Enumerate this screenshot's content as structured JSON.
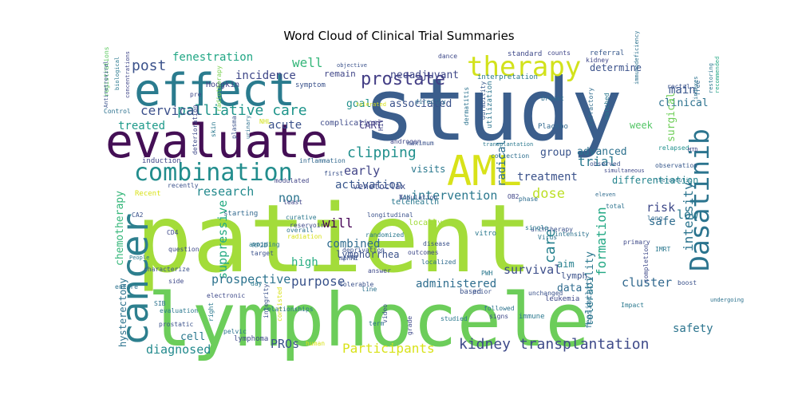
{
  "figure": {
    "title": "Word Cloud of Clinical Trial Summaries"
  },
  "cloud": {
    "background": "#ffffff",
    "colormap": "viridis",
    "words": [
      {
        "text": "study",
        "color": "#3b5e8c"
      },
      {
        "text": "patient",
        "color": "#a3dc3a"
      },
      {
        "text": "lymphocele",
        "color": "#6ccd5a"
      },
      {
        "text": "evaluate",
        "color": "#440f55"
      },
      {
        "text": "effect",
        "color": "#2a7b8e"
      },
      {
        "text": "cancer",
        "color": "#2d7f8e"
      },
      {
        "text": "AML",
        "color": "#d8e219"
      },
      {
        "text": "therapy",
        "color": "#d2e21b"
      },
      {
        "text": "combination",
        "color": "#228d8d"
      },
      {
        "text": "Dasatinib",
        "color": "#2b748e"
      },
      {
        "text": "kidney transplantation",
        "color": "#3e4a89"
      },
      {
        "text": "prostate",
        "color": "#433e85"
      },
      {
        "text": "post",
        "color": "#3b528b"
      },
      {
        "text": "fenestration",
        "color": "#22a785"
      },
      {
        "text": "well",
        "color": "#34b679"
      },
      {
        "text": "incidence",
        "color": "#3f4788"
      },
      {
        "text": "palliative care",
        "color": "#1f958b"
      },
      {
        "text": "cervical",
        "color": "#3c508b"
      },
      {
        "text": "treated",
        "color": "#1e9a8a"
      },
      {
        "text": "main",
        "color": "#39568c"
      },
      {
        "text": "clinical",
        "color": "#2c718e"
      },
      {
        "text": "clipping",
        "color": "#21908d"
      },
      {
        "text": "research",
        "color": "#238a8d"
      },
      {
        "text": "early",
        "color": "#414487"
      },
      {
        "text": "activation",
        "color": "#39568c"
      },
      {
        "text": "intervention",
        "color": "#2a788e"
      },
      {
        "text": "treatment",
        "color": "#3b528b"
      },
      {
        "text": "dose",
        "color": "#bddf26"
      },
      {
        "text": "trial",
        "color": "#2a788e"
      },
      {
        "text": "group",
        "color": "#3a548c"
      },
      {
        "text": "advanced",
        "color": "#2d718e"
      },
      {
        "text": "differentiation",
        "color": "#25858e"
      },
      {
        "text": "risk",
        "color": "#3e4989"
      },
      {
        "text": "safe",
        "color": "#2f6c8e"
      },
      {
        "text": "low",
        "color": "#2a788e"
      },
      {
        "text": "intensity",
        "color": "#2b748e"
      },
      {
        "text": "formation",
        "color": "#22a884"
      },
      {
        "text": "radical",
        "color": "#2e6e8e"
      },
      {
        "text": "surgical",
        "color": "#6ece58"
      },
      {
        "text": "week",
        "color": "#55c667"
      },
      {
        "text": "goal",
        "color": "#21918c"
      },
      {
        "text": "associated",
        "color": "#3b528b"
      },
      {
        "text": "neoadjuvant",
        "color": "#3f4788"
      },
      {
        "text": "remain",
        "color": "#404688"
      },
      {
        "text": "acute",
        "color": "#3b528b"
      },
      {
        "text": "complication",
        "color": "#3e4a89"
      },
      {
        "text": "CART",
        "color": "#433d84"
      },
      {
        "text": "visits",
        "color": "#2a788e"
      },
      {
        "text": "will",
        "color": "#440154"
      },
      {
        "text": "combined",
        "color": "#2f6b8e"
      },
      {
        "text": "lymphorrhea",
        "color": "#3b528b"
      },
      {
        "text": "non",
        "color": "#2b748e"
      },
      {
        "text": "venetoclax",
        "color": "#3e4c8a"
      },
      {
        "text": "suppressive",
        "color": "#25ab82"
      },
      {
        "text": "high",
        "color": "#27ad81"
      },
      {
        "text": "purpose",
        "color": "#3a538b"
      },
      {
        "text": "prospective",
        "color": "#2c738e"
      },
      {
        "text": "administered",
        "color": "#2e6d8e"
      },
      {
        "text": "survival",
        "color": "#3d4e8a"
      },
      {
        "text": "care",
        "color": "#26818e"
      },
      {
        "text": "lymph",
        "color": "#3b528b"
      },
      {
        "text": "aim",
        "color": "#27808e"
      },
      {
        "text": "data",
        "color": "#2f6b8e"
      },
      {
        "text": "cluster",
        "color": "#31688e"
      },
      {
        "text": "tolerability",
        "color": "#2a788e"
      },
      {
        "text": "feasibility",
        "color": "#2d708e"
      },
      {
        "text": "safety",
        "color": "#2b748e"
      },
      {
        "text": "PROs",
        "color": "#3b528b"
      },
      {
        "text": "Participants",
        "color": "#d8e219"
      },
      {
        "text": "diagnosed",
        "color": "#238a8d"
      },
      {
        "text": "cell",
        "color": "#2a788e"
      },
      {
        "text": "chemotherapy",
        "color": "#34b679"
      },
      {
        "text": "hysterectomy",
        "color": "#2c738e"
      },
      {
        "text": "Hodgkin",
        "color": "#414487"
      },
      {
        "text": "symptom",
        "color": "#3b528b"
      },
      {
        "text": "standard",
        "color": "#3e4989"
      },
      {
        "text": "counts",
        "color": "#404688"
      },
      {
        "text": "referral",
        "color": "#38598c"
      },
      {
        "text": "determine",
        "color": "#3b528b"
      },
      {
        "text": "kidney",
        "color": "#3f4788"
      },
      {
        "text": "Placebo",
        "color": "#31688e"
      },
      {
        "text": "breast",
        "color": "#2e6d8e"
      },
      {
        "text": "rectal",
        "color": "#3b528b"
      },
      {
        "text": "interpretation",
        "color": "#2a788e"
      },
      {
        "text": "dance",
        "color": "#3e4989"
      },
      {
        "text": "utilization",
        "color": "#2b748e"
      },
      {
        "text": "durability",
        "color": "#38598c"
      },
      {
        "text": "dermatitis",
        "color": "#2c728e"
      },
      {
        "text": "refractory",
        "color": "#2f6c8e"
      },
      {
        "text": "matched",
        "color": "#2a788e"
      },
      {
        "text": "recommended",
        "color": "#22a884"
      },
      {
        "text": "immunodeficiency",
        "color": "#2c728e"
      },
      {
        "text": "relapsed",
        "color": "#21908d"
      },
      {
        "text": "registrations",
        "color": "#5ec962"
      },
      {
        "text": "Antiretroviral",
        "color": "#3b528b"
      },
      {
        "text": "biological",
        "color": "#2a788e"
      },
      {
        "text": "concentrations",
        "color": "#404688"
      },
      {
        "text": "Control",
        "color": "#2c718e"
      },
      {
        "text": "pre",
        "color": "#3e4989"
      },
      {
        "text": "skin",
        "color": "#2a788e"
      },
      {
        "text": "plasma",
        "color": "#3b528b"
      },
      {
        "text": "radiotherapy",
        "color": "#7ad151"
      },
      {
        "text": "NHL",
        "color": "#d2e21b"
      },
      {
        "text": "urinary",
        "color": "#2d708e"
      },
      {
        "text": "androgen",
        "color": "#404688"
      },
      {
        "text": "maximum",
        "color": "#3b528b"
      },
      {
        "text": "directly",
        "color": "#2e6d8e"
      },
      {
        "text": "HIV",
        "color": "#414487"
      },
      {
        "text": "tolerated",
        "color": "#d8e219"
      },
      {
        "text": "objective",
        "color": "#3b528b"
      },
      {
        "text": "transplantation",
        "color": "#2a788e"
      },
      {
        "text": "collection",
        "color": "#2e6e8e"
      },
      {
        "text": "simultaneous",
        "color": "#3e4989"
      },
      {
        "text": "eleven",
        "color": "#2f6b8e"
      },
      {
        "text": "observed",
        "color": "#3b528b"
      },
      {
        "text": "observation",
        "color": "#38598c"
      },
      {
        "text": "therapeutic",
        "color": "#2a788e"
      },
      {
        "text": "MTD",
        "color": "#3e4989"
      },
      {
        "text": "free",
        "color": "#31688e"
      },
      {
        "text": "indexes",
        "color": "#2c728e"
      },
      {
        "text": "restoring",
        "color": "#2a788e"
      },
      {
        "text": "induction",
        "color": "#404688"
      },
      {
        "text": "deterioration",
        "color": "#3e4989"
      },
      {
        "text": "inflammation",
        "color": "#31688e"
      },
      {
        "text": "first",
        "color": "#3b528b"
      },
      {
        "text": "modulated",
        "color": "#414487"
      },
      {
        "text": "Recent",
        "color": "#d8e219"
      },
      {
        "text": "recently",
        "color": "#3b528b"
      },
      {
        "text": "telehealth",
        "color": "#2a788e"
      },
      {
        "text": "longitudinal",
        "color": "#3b528b"
      },
      {
        "text": "least",
        "color": "#404688"
      },
      {
        "text": "curative",
        "color": "#2a788e"
      },
      {
        "text": "reservoir",
        "color": "#3e4989"
      },
      {
        "text": "starting",
        "color": "#31688e"
      },
      {
        "text": "overall",
        "color": "#2c728e"
      },
      {
        "text": "radiation",
        "color": "#d8e219"
      },
      {
        "text": "mpMRI",
        "color": "#3b528b"
      },
      {
        "text": "randomized",
        "color": "#2a788e"
      },
      {
        "text": "locally",
        "color": "#a0da39"
      },
      {
        "text": "outcomes",
        "color": "#3e4989"
      },
      {
        "text": "localized",
        "color": "#2f6b8e"
      },
      {
        "text": "disease",
        "color": "#3b528b"
      },
      {
        "text": "vitro",
        "color": "#2a788e"
      },
      {
        "text": "OB2",
        "color": "#404688"
      },
      {
        "text": "phase",
        "color": "#2e6d8e"
      },
      {
        "text": "archtherapy",
        "color": "#3b528b"
      },
      {
        "text": "Virus",
        "color": "#2c728e"
      },
      {
        "text": "primary",
        "color": "#3e4989"
      },
      {
        "text": "IMRT",
        "color": "#2a788e"
      },
      {
        "text": "long",
        "color": "#31688e"
      },
      {
        "text": "total",
        "color": "#2c728e"
      },
      {
        "text": "CA2",
        "color": "#3b528b"
      },
      {
        "text": "CD4",
        "color": "#3e4989"
      },
      {
        "text": "avoiding",
        "color": "#2a788e"
      },
      {
        "text": "target",
        "color": "#3b528b"
      },
      {
        "text": "RP2D",
        "color": "#2c728e"
      },
      {
        "text": "question",
        "color": "#3e4989"
      },
      {
        "text": "People",
        "color": "#2a788e"
      },
      {
        "text": "characterize",
        "color": "#3b528b"
      },
      {
        "text": "entire",
        "color": "#2c728e"
      },
      {
        "text": "side",
        "color": "#3e4989"
      },
      {
        "text": "day",
        "color": "#2a788e"
      },
      {
        "text": "tolerable",
        "color": "#3b528b"
      },
      {
        "text": "SIB",
        "color": "#2c728e"
      },
      {
        "text": "evaluation",
        "color": "#2a788e"
      },
      {
        "text": "prostatic",
        "color": "#3b528b"
      },
      {
        "text": "electronic",
        "color": "#3e4989"
      },
      {
        "text": "pelvic",
        "color": "#2c728e"
      },
      {
        "text": "right",
        "color": "#2a788e"
      },
      {
        "text": "consisted",
        "color": "#d8e219"
      },
      {
        "text": "integrity",
        "color": "#3b528b"
      },
      {
        "text": "relationships",
        "color": "#2c728e"
      },
      {
        "text": "lymphoma",
        "color": "#3e4989"
      },
      {
        "text": "human",
        "color": "#d8e219"
      },
      {
        "text": "video",
        "color": "#3b528b"
      },
      {
        "text": "term",
        "color": "#2c728e"
      },
      {
        "text": "grade",
        "color": "#3e4989"
      },
      {
        "text": "studied",
        "color": "#2a788e"
      },
      {
        "text": "based",
        "color": "#3b528b"
      },
      {
        "text": "line",
        "color": "#2c728e"
      },
      {
        "text": "answer",
        "color": "#3e4989"
      },
      {
        "text": "PWH",
        "color": "#2a788e"
      },
      {
        "text": "prior",
        "color": "#3b528b"
      },
      {
        "text": "followed",
        "color": "#2c728e"
      },
      {
        "text": "signs",
        "color": "#3e4989"
      },
      {
        "text": "immune",
        "color": "#2a788e"
      },
      {
        "text": "unchanged",
        "color": "#3b528b"
      },
      {
        "text": "intensity",
        "color": "#2c728e"
      },
      {
        "text": "leukemia",
        "color": "#3e4989"
      },
      {
        "text": "Impact",
        "color": "#2a788e"
      },
      {
        "text": "boost",
        "color": "#3b528b"
      },
      {
        "text": "undergoing",
        "color": "#2c728e"
      },
      {
        "text": "completion",
        "color": "#3e4989"
      },
      {
        "text": "single",
        "color": "#2a788e"
      },
      {
        "text": "deprivation",
        "color": "#3b528b"
      },
      {
        "text": "TAK",
        "color": "#2c728e"
      },
      {
        "text": "T",
        "color": "#3e4989"
      },
      {
        "text": "population",
        "color": "#3b528b"
      }
    ]
  }
}
